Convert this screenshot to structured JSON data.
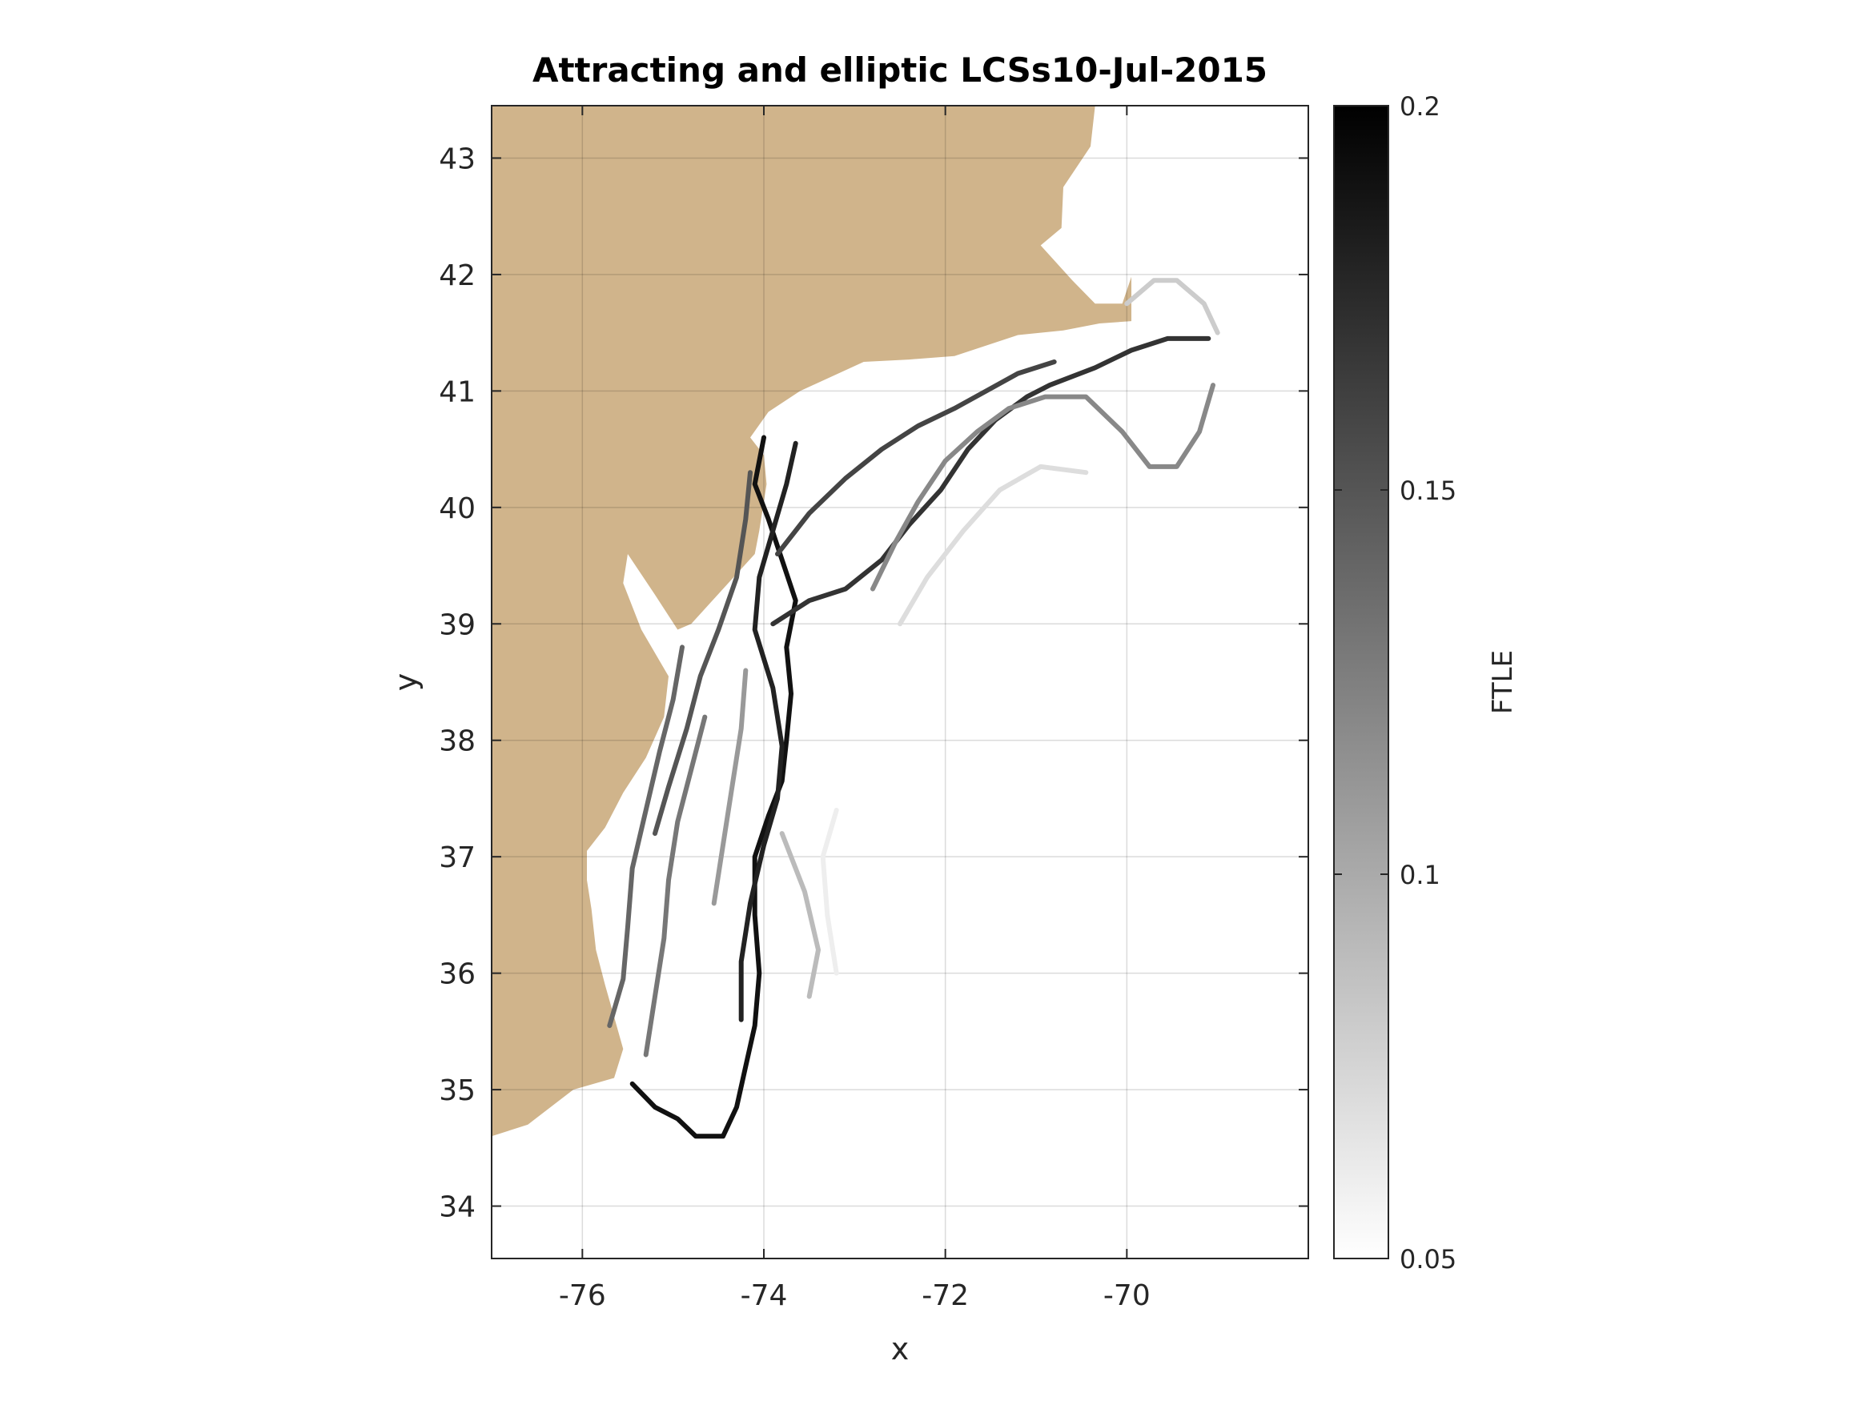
{
  "chart_data": {
    "type": "heatmap",
    "title": "Attracting and elliptic LCSs10-Jul-2015",
    "xlabel": "x",
    "ylabel": "y",
    "xlim": [
      -77.0,
      -68.0
    ],
    "ylim": [
      33.55,
      43.45
    ],
    "x_ticks": [
      {
        "value": -76,
        "label": "-76"
      },
      {
        "value": -74,
        "label": "-74"
      },
      {
        "value": -72,
        "label": "-72"
      },
      {
        "value": -70,
        "label": "-70"
      }
    ],
    "y_ticks": [
      {
        "value": 34,
        "label": "34"
      },
      {
        "value": 35,
        "label": "35"
      },
      {
        "value": 36,
        "label": "36"
      },
      {
        "value": 37,
        "label": "37"
      },
      {
        "value": 38,
        "label": "38"
      },
      {
        "value": 39,
        "label": "39"
      },
      {
        "value": 40,
        "label": "40"
      },
      {
        "value": 41,
        "label": "41"
      },
      {
        "value": 42,
        "label": "42"
      },
      {
        "value": 43,
        "label": "43"
      }
    ],
    "grid": true,
    "land_color": "#d0b48b",
    "colormap": "gray (reversed: low = white, high = black)",
    "colorbar": {
      "label": "FTLE",
      "range": [
        0.05,
        0.2
      ],
      "ticks": [
        {
          "value": 0.05,
          "label": "0.05"
        },
        {
          "value": 0.1,
          "label": "0.1"
        },
        {
          "value": 0.15,
          "label": "0.15"
        },
        {
          "value": 0.2,
          "label": "0.2"
        }
      ]
    },
    "land_polygon": [
      [
        -77.0,
        43.45
      ],
      [
        -70.35,
        43.45
      ],
      [
        -70.4,
        43.1
      ],
      [
        -70.7,
        42.75
      ],
      [
        -70.72,
        42.4
      ],
      [
        -70.95,
        42.25
      ],
      [
        -70.6,
        41.95
      ],
      [
        -70.35,
        41.75
      ],
      [
        -70.05,
        41.75
      ],
      [
        -69.95,
        41.98
      ],
      [
        -69.95,
        41.6
      ],
      [
        -70.3,
        41.58
      ],
      [
        -70.7,
        41.52
      ],
      [
        -71.2,
        41.48
      ],
      [
        -71.9,
        41.3
      ],
      [
        -72.4,
        41.27
      ],
      [
        -72.9,
        41.25
      ],
      [
        -73.6,
        41.0
      ],
      [
        -73.95,
        40.82
      ],
      [
        -74.15,
        40.6
      ],
      [
        -74.0,
        40.45
      ],
      [
        -73.97,
        40.2
      ],
      [
        -74.05,
        39.8
      ],
      [
        -74.1,
        39.6
      ],
      [
        -74.45,
        39.3
      ],
      [
        -74.8,
        39.0
      ],
      [
        -74.95,
        38.95
      ],
      [
        -75.2,
        39.25
      ],
      [
        -75.5,
        39.6
      ],
      [
        -75.55,
        39.35
      ],
      [
        -75.35,
        38.95
      ],
      [
        -75.05,
        38.55
      ],
      [
        -75.1,
        38.2
      ],
      [
        -75.3,
        37.85
      ],
      [
        -75.55,
        37.55
      ],
      [
        -75.75,
        37.25
      ],
      [
        -75.95,
        37.05
      ],
      [
        -75.95,
        36.8
      ],
      [
        -75.9,
        36.55
      ],
      [
        -75.85,
        36.2
      ],
      [
        -75.75,
        35.9
      ],
      [
        -75.55,
        35.35
      ],
      [
        -75.65,
        35.1
      ],
      [
        -76.1,
        35.0
      ],
      [
        -76.6,
        34.7
      ],
      [
        -77.0,
        34.6
      ]
    ],
    "ftle_structures": [
      {
        "ftle": 0.19,
        "points": [
          [
            -75.45,
            35.05
          ],
          [
            -75.2,
            34.85
          ],
          [
            -74.95,
            34.75
          ],
          [
            -74.75,
            34.6
          ],
          [
            -74.45,
            34.6
          ],
          [
            -74.3,
            34.85
          ],
          [
            -74.2,
            35.2
          ],
          [
            -74.1,
            35.55
          ],
          [
            -74.05,
            36.0
          ],
          [
            -74.1,
            36.5
          ],
          [
            -74.1,
            37.0
          ],
          [
            -73.95,
            37.35
          ],
          [
            -73.8,
            37.65
          ],
          [
            -73.75,
            38.0
          ],
          [
            -73.7,
            38.4
          ],
          [
            -73.75,
            38.8
          ],
          [
            -73.65,
            39.2
          ],
          [
            -73.8,
            39.55
          ],
          [
            -73.95,
            39.9
          ],
          [
            -74.1,
            40.2
          ],
          [
            -74.0,
            40.6
          ]
        ]
      },
      {
        "ftle": 0.18,
        "points": [
          [
            -74.25,
            35.6
          ],
          [
            -74.25,
            36.1
          ],
          [
            -74.15,
            36.6
          ],
          [
            -74.0,
            37.1
          ],
          [
            -73.85,
            37.5
          ],
          [
            -73.8,
            37.95
          ],
          [
            -73.9,
            38.45
          ],
          [
            -74.1,
            38.95
          ],
          [
            -74.05,
            39.4
          ],
          [
            -73.9,
            39.8
          ],
          [
            -73.75,
            40.2
          ],
          [
            -73.65,
            40.55
          ]
        ]
      },
      {
        "ftle": 0.17,
        "points": [
          [
            -73.9,
            39.0
          ],
          [
            -73.5,
            39.2
          ],
          [
            -73.1,
            39.3
          ],
          [
            -72.7,
            39.55
          ],
          [
            -72.4,
            39.85
          ],
          [
            -72.05,
            40.15
          ],
          [
            -71.75,
            40.5
          ],
          [
            -71.45,
            40.75
          ],
          [
            -71.1,
            40.95
          ],
          [
            -70.85,
            41.05
          ],
          [
            -70.35,
            41.2
          ],
          [
            -69.95,
            41.35
          ],
          [
            -69.55,
            41.45
          ],
          [
            -69.1,
            41.45
          ]
        ]
      },
      {
        "ftle": 0.16,
        "points": [
          [
            -73.85,
            39.6
          ],
          [
            -73.5,
            39.95
          ],
          [
            -73.1,
            40.25
          ],
          [
            -72.7,
            40.5
          ],
          [
            -72.3,
            40.7
          ],
          [
            -71.9,
            40.85
          ],
          [
            -71.55,
            41.0
          ],
          [
            -71.2,
            41.15
          ],
          [
            -70.8,
            41.25
          ]
        ]
      },
      {
        "ftle": 0.15,
        "points": [
          [
            -75.2,
            37.2
          ],
          [
            -75.05,
            37.6
          ],
          [
            -74.85,
            38.1
          ],
          [
            -74.7,
            38.55
          ],
          [
            -74.5,
            38.95
          ],
          [
            -74.3,
            39.4
          ],
          [
            -74.2,
            39.9
          ],
          [
            -74.15,
            40.3
          ]
        ]
      },
      {
        "ftle": 0.14,
        "points": [
          [
            -75.7,
            35.55
          ],
          [
            -75.55,
            35.95
          ],
          [
            -75.5,
            36.4
          ],
          [
            -75.45,
            36.9
          ],
          [
            -75.3,
            37.4
          ],
          [
            -75.15,
            37.9
          ],
          [
            -75.0,
            38.35
          ],
          [
            -74.9,
            38.8
          ]
        ]
      },
      {
        "ftle": 0.13,
        "points": [
          [
            -75.3,
            35.3
          ],
          [
            -75.2,
            35.8
          ],
          [
            -75.1,
            36.3
          ],
          [
            -75.05,
            36.8
          ],
          [
            -74.95,
            37.3
          ],
          [
            -74.8,
            37.75
          ],
          [
            -74.65,
            38.2
          ]
        ]
      },
      {
        "ftle": 0.12,
        "points": [
          [
            -72.8,
            39.3
          ],
          [
            -72.55,
            39.7
          ],
          [
            -72.3,
            40.05
          ],
          [
            -72.0,
            40.4
          ],
          [
            -71.65,
            40.65
          ],
          [
            -71.3,
            40.85
          ],
          [
            -70.9,
            40.95
          ],
          [
            -70.45,
            40.95
          ],
          [
            -70.05,
            40.65
          ],
          [
            -69.75,
            40.35
          ],
          [
            -69.45,
            40.35
          ],
          [
            -69.2,
            40.65
          ],
          [
            -69.05,
            41.05
          ]
        ]
      },
      {
        "ftle": 0.11,
        "points": [
          [
            -74.55,
            36.6
          ],
          [
            -74.45,
            37.1
          ],
          [
            -74.35,
            37.6
          ],
          [
            -74.25,
            38.1
          ],
          [
            -74.2,
            38.6
          ]
        ]
      },
      {
        "ftle": 0.09,
        "points": [
          [
            -73.8,
            37.2
          ],
          [
            -73.55,
            36.7
          ],
          [
            -73.4,
            36.2
          ],
          [
            -73.5,
            35.8
          ]
        ]
      },
      {
        "ftle": 0.08,
        "points": [
          [
            -70.0,
            41.75
          ],
          [
            -69.7,
            41.95
          ],
          [
            -69.45,
            41.95
          ],
          [
            -69.15,
            41.75
          ],
          [
            -69.0,
            41.5
          ]
        ]
      },
      {
        "ftle": 0.07,
        "points": [
          [
            -72.5,
            39.0
          ],
          [
            -72.2,
            39.4
          ],
          [
            -71.8,
            39.8
          ],
          [
            -71.4,
            40.15
          ],
          [
            -70.95,
            40.35
          ],
          [
            -70.45,
            40.3
          ]
        ]
      },
      {
        "ftle": 0.06,
        "points": [
          [
            -73.2,
            36.0
          ],
          [
            -73.3,
            36.5
          ],
          [
            -73.35,
            37.0
          ],
          [
            -73.2,
            37.4
          ]
        ]
      }
    ]
  }
}
